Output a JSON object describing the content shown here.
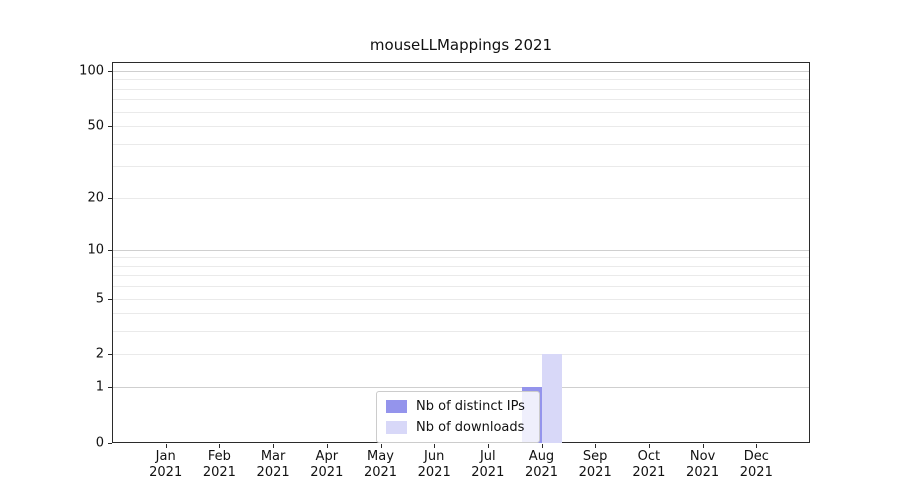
{
  "chart_data": {
    "type": "bar",
    "title": "mouseLLMappings 2021",
    "categories": [
      "Jan 2021",
      "Feb 2021",
      "Mar 2021",
      "Apr 2021",
      "May 2021",
      "Jun 2021",
      "Jul 2021",
      "Aug 2021",
      "Sep 2021",
      "Oct 2021",
      "Nov 2021",
      "Dec 2021"
    ],
    "series": [
      {
        "name": "Nb of distinct IPs",
        "color": "#9494ec",
        "values": [
          0,
          0,
          0,
          0,
          0,
          0,
          0,
          1,
          0,
          0,
          0,
          0
        ]
      },
      {
        "name": "Nb of downloads",
        "color": "#d8d8f8",
        "values": [
          0,
          0,
          0,
          0,
          0,
          0,
          0,
          2,
          0,
          0,
          0,
          0
        ]
      }
    ],
    "y_ticks": [
      0,
      1,
      2,
      5,
      10,
      20,
      50,
      100
    ],
    "y_scale": "log1p",
    "ylim": [
      0,
      112
    ],
    "grid": "horizontal-log-minor",
    "legend_position": "lower center"
  }
}
